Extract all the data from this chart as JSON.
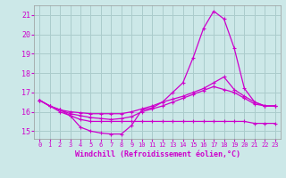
{
  "xlabel": "Windchill (Refroidissement éolien,°C)",
  "background_color": "#cce8e8",
  "grid_color": "#aacccc",
  "line_color": "#cc00cc",
  "xlim": [
    -0.5,
    23.5
  ],
  "ylim": [
    14.6,
    21.5
  ],
  "yticks": [
    15,
    16,
    17,
    18,
    19,
    20,
    21
  ],
  "xticks": [
    0,
    1,
    2,
    3,
    4,
    5,
    6,
    7,
    8,
    9,
    10,
    11,
    12,
    13,
    14,
    15,
    16,
    17,
    18,
    19,
    20,
    21,
    22,
    23
  ],
  "series": [
    {
      "x": [
        0,
        1,
        2,
        3,
        4,
        5,
        6,
        7,
        8,
        9,
        10,
        11,
        12,
        13,
        14,
        15,
        16,
        17,
        18,
        19,
        20,
        21,
        22,
        23
      ],
      "y": [
        16.6,
        16.3,
        16.1,
        15.8,
        15.2,
        15.0,
        14.9,
        14.85,
        14.85,
        15.3,
        16.1,
        16.2,
        16.5,
        17.0,
        17.5,
        18.8,
        20.3,
        21.2,
        20.8,
        19.3,
        17.2,
        16.5,
        16.3,
        16.3
      ]
    },
    {
      "x": [
        0,
        1,
        2,
        3,
        4,
        5,
        6,
        7,
        8,
        9,
        10,
        11,
        12,
        13,
        14,
        15,
        16,
        17,
        18,
        19,
        20,
        21,
        22,
        23
      ],
      "y": [
        16.6,
        16.3,
        16.1,
        16.0,
        15.95,
        15.9,
        15.9,
        15.9,
        15.9,
        16.0,
        16.15,
        16.3,
        16.5,
        16.65,
        16.8,
        17.0,
        17.2,
        17.5,
        17.8,
        17.15,
        16.8,
        16.5,
        16.3,
        16.3
      ]
    },
    {
      "x": [
        0,
        1,
        2,
        3,
        4,
        5,
        6,
        7,
        8,
        9,
        10,
        11,
        12,
        13,
        14,
        15,
        16,
        17,
        18,
        19,
        20,
        21,
        22,
        23
      ],
      "y": [
        16.6,
        16.3,
        16.0,
        15.8,
        15.6,
        15.5,
        15.5,
        15.5,
        15.5,
        15.5,
        15.5,
        15.5,
        15.5,
        15.5,
        15.5,
        15.5,
        15.5,
        15.5,
        15.5,
        15.5,
        15.5,
        15.4,
        15.4,
        15.4
      ]
    },
    {
      "x": [
        0,
        1,
        2,
        3,
        4,
        5,
        6,
        7,
        8,
        9,
        10,
        11,
        12,
        13,
        14,
        15,
        16,
        17,
        18,
        19,
        20,
        21,
        22,
        23
      ],
      "y": [
        16.6,
        16.3,
        16.1,
        15.9,
        15.8,
        15.7,
        15.65,
        15.6,
        15.65,
        15.75,
        16.0,
        16.15,
        16.3,
        16.5,
        16.7,
        16.9,
        17.1,
        17.3,
        17.15,
        17.0,
        16.7,
        16.4,
        16.3,
        16.3
      ]
    }
  ]
}
